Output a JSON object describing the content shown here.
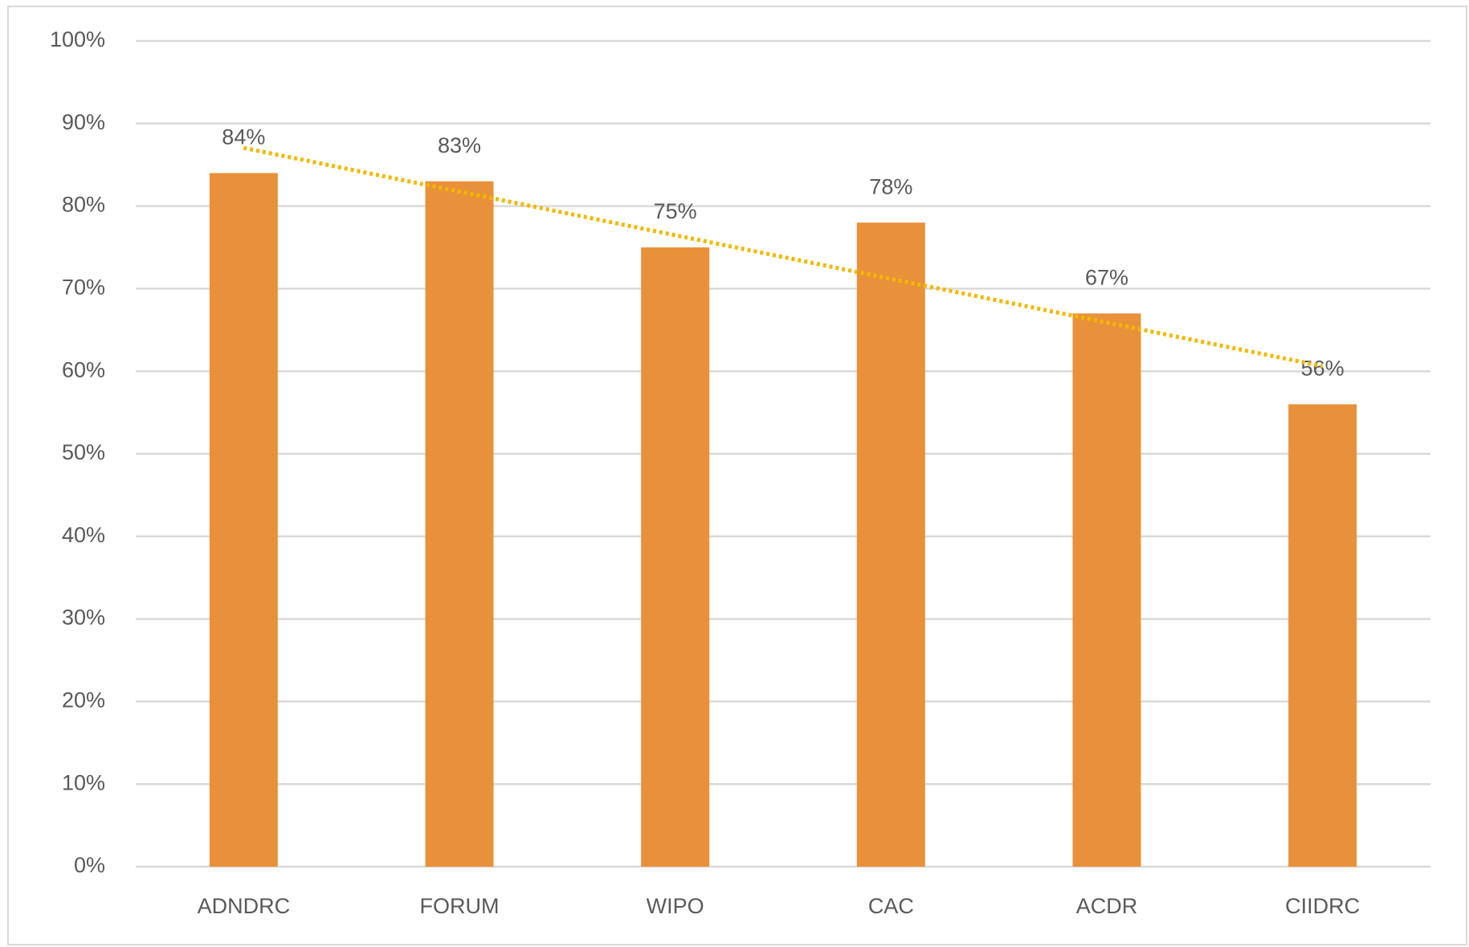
{
  "chart_data": {
    "type": "bar",
    "categories": [
      "ADNDRC",
      "FORUM",
      "WIPO",
      "CAC",
      "ACDR",
      "CIIDRC"
    ],
    "values": [
      84,
      83,
      75,
      78,
      67,
      56
    ],
    "value_labels": [
      "84%",
      "83%",
      "75%",
      "78%",
      "67%",
      "56%"
    ],
    "color": "#e8913a",
    "ylim": [
      0,
      100
    ],
    "yticks": [
      {
        "value": 0,
        "label": "0%"
      },
      {
        "value": 10,
        "label": "10%"
      },
      {
        "value": 20,
        "label": "20%"
      },
      {
        "value": 30,
        "label": "30%"
      },
      {
        "value": 40,
        "label": "40%"
      },
      {
        "value": 50,
        "label": "50%"
      },
      {
        "value": 60,
        "label": "60%"
      },
      {
        "value": 70,
        "label": "70%"
      },
      {
        "value": 80,
        "label": "80%"
      },
      {
        "value": 90,
        "label": "90%"
      },
      {
        "value": 100,
        "label": "100%"
      }
    ],
    "grid": true,
    "trendline": {
      "type": "linear",
      "color": "#f2b800"
    }
  }
}
